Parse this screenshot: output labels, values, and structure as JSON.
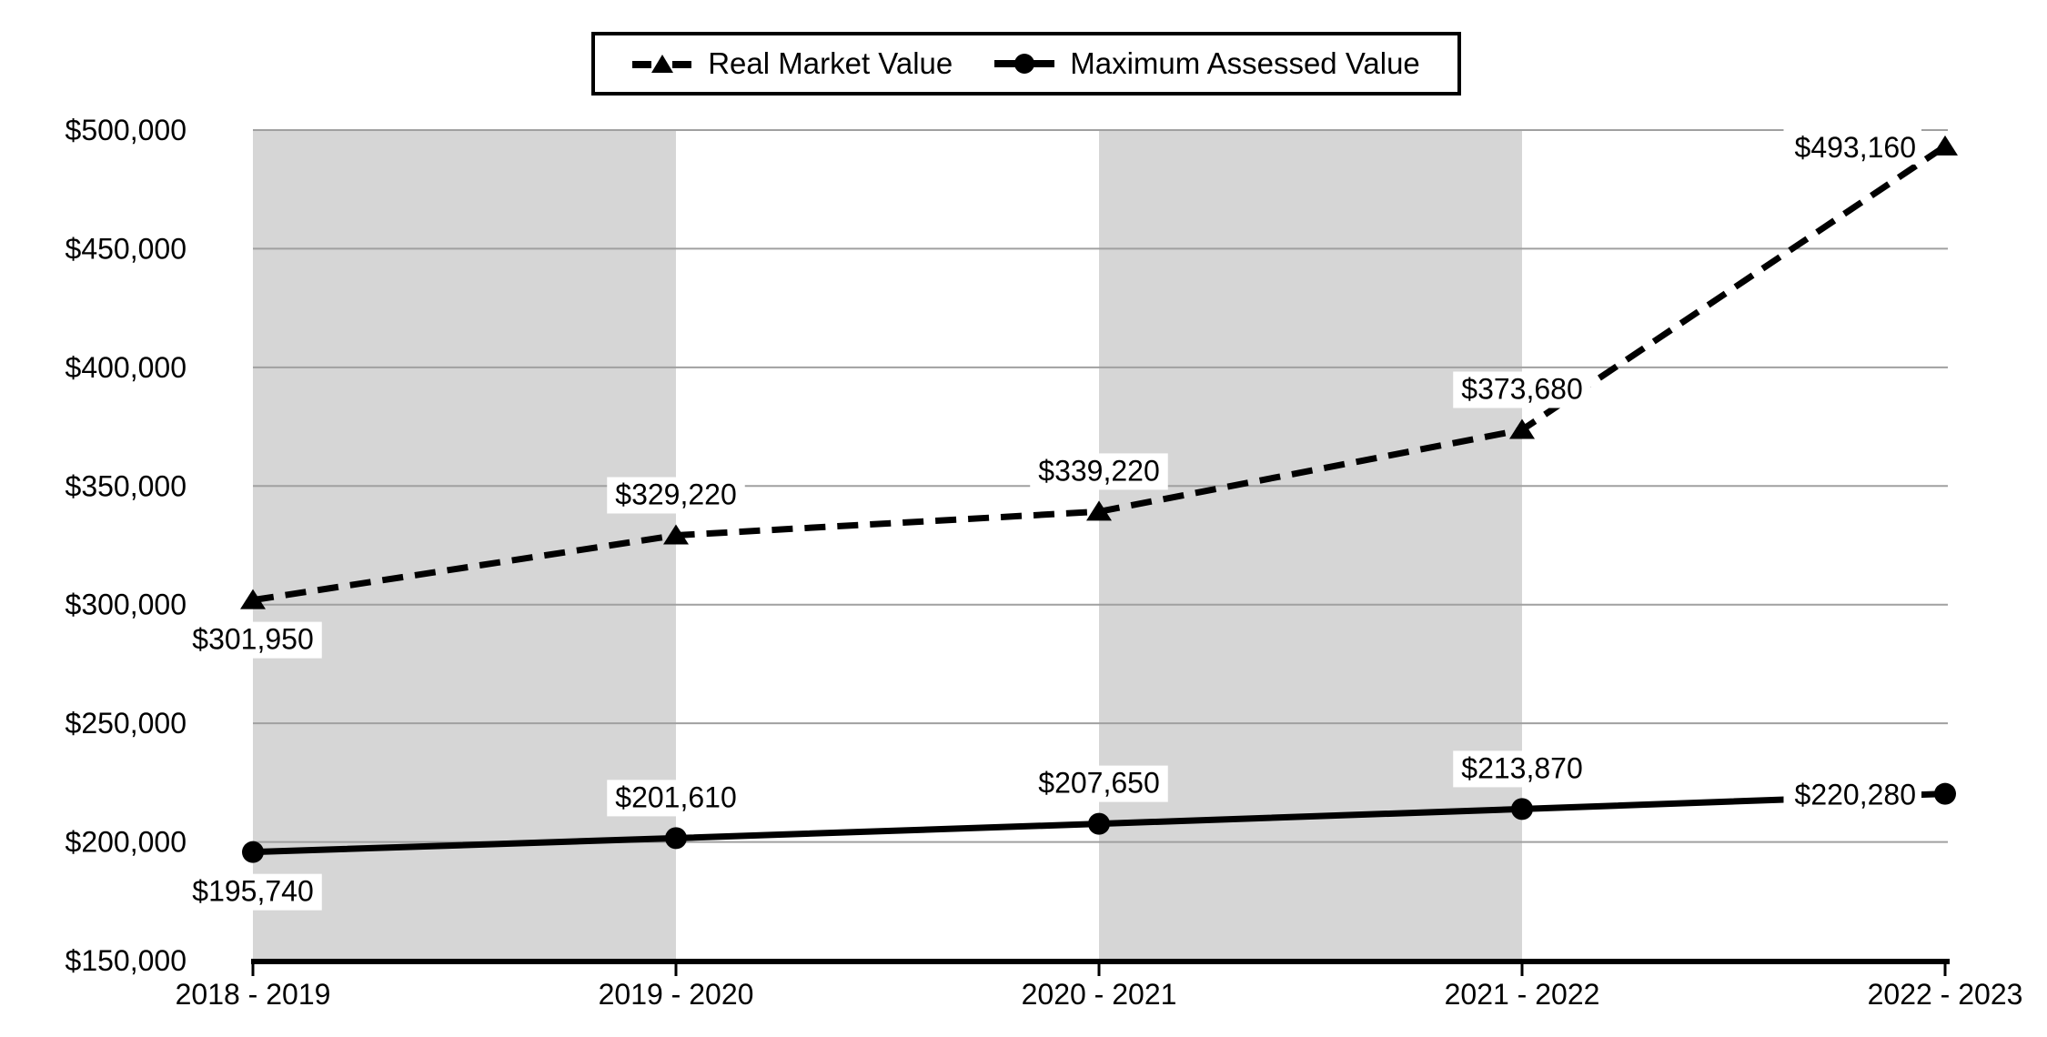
{
  "legend": {
    "items": [
      {
        "label": "Real Market Value",
        "marker": "dashed-line-triangle"
      },
      {
        "label": "Maximum Assessed Value",
        "marker": "solid-line-circle"
      }
    ]
  },
  "chart_data": {
    "type": "line",
    "title": "",
    "xlabel": "",
    "ylabel": "",
    "categories": [
      "2018 - 2019",
      "2019 - 2020",
      "2020 - 2021",
      "2021 - 2022",
      "2022 - 2023"
    ],
    "series": [
      {
        "name": "Real Market Value",
        "line_style": "dashed",
        "marker": "triangle",
        "values": [
          301950,
          329220,
          339220,
          373680,
          493160
        ],
        "data_labels": [
          "$301,950",
          "$329,220",
          "$339,220",
          "$373,680",
          "$493,160"
        ],
        "label_placements": [
          "below",
          "above",
          "above",
          "above",
          "left"
        ]
      },
      {
        "name": "Maximum Assessed Value",
        "line_style": "solid",
        "marker": "circle",
        "values": [
          195740,
          201610,
          207650,
          213870,
          220280
        ],
        "data_labels": [
          "$195,740",
          "$201,610",
          "$207,650",
          "$213,870",
          "$220,280"
        ],
        "label_placements": [
          "below",
          "above",
          "above",
          "above",
          "left"
        ]
      }
    ],
    "y_axis": {
      "min": 150000,
      "max": 500000,
      "step": 50000,
      "tick_labels": [
        "$150,000",
        "$200,000",
        "$250,000",
        "$300,000",
        "$350,000",
        "$400,000",
        "$450,000",
        "$500,000"
      ]
    },
    "shaded_band_pairs": [
      [
        0,
        1
      ],
      [
        2,
        3
      ]
    ],
    "grid": true,
    "legend_position": "top",
    "colors": {
      "series": "#000000",
      "gridline": "#a0a0a0",
      "band": "#d6d6d6",
      "label_background": "#ffffff",
      "text": "#000000",
      "axis": "#000000"
    }
  }
}
